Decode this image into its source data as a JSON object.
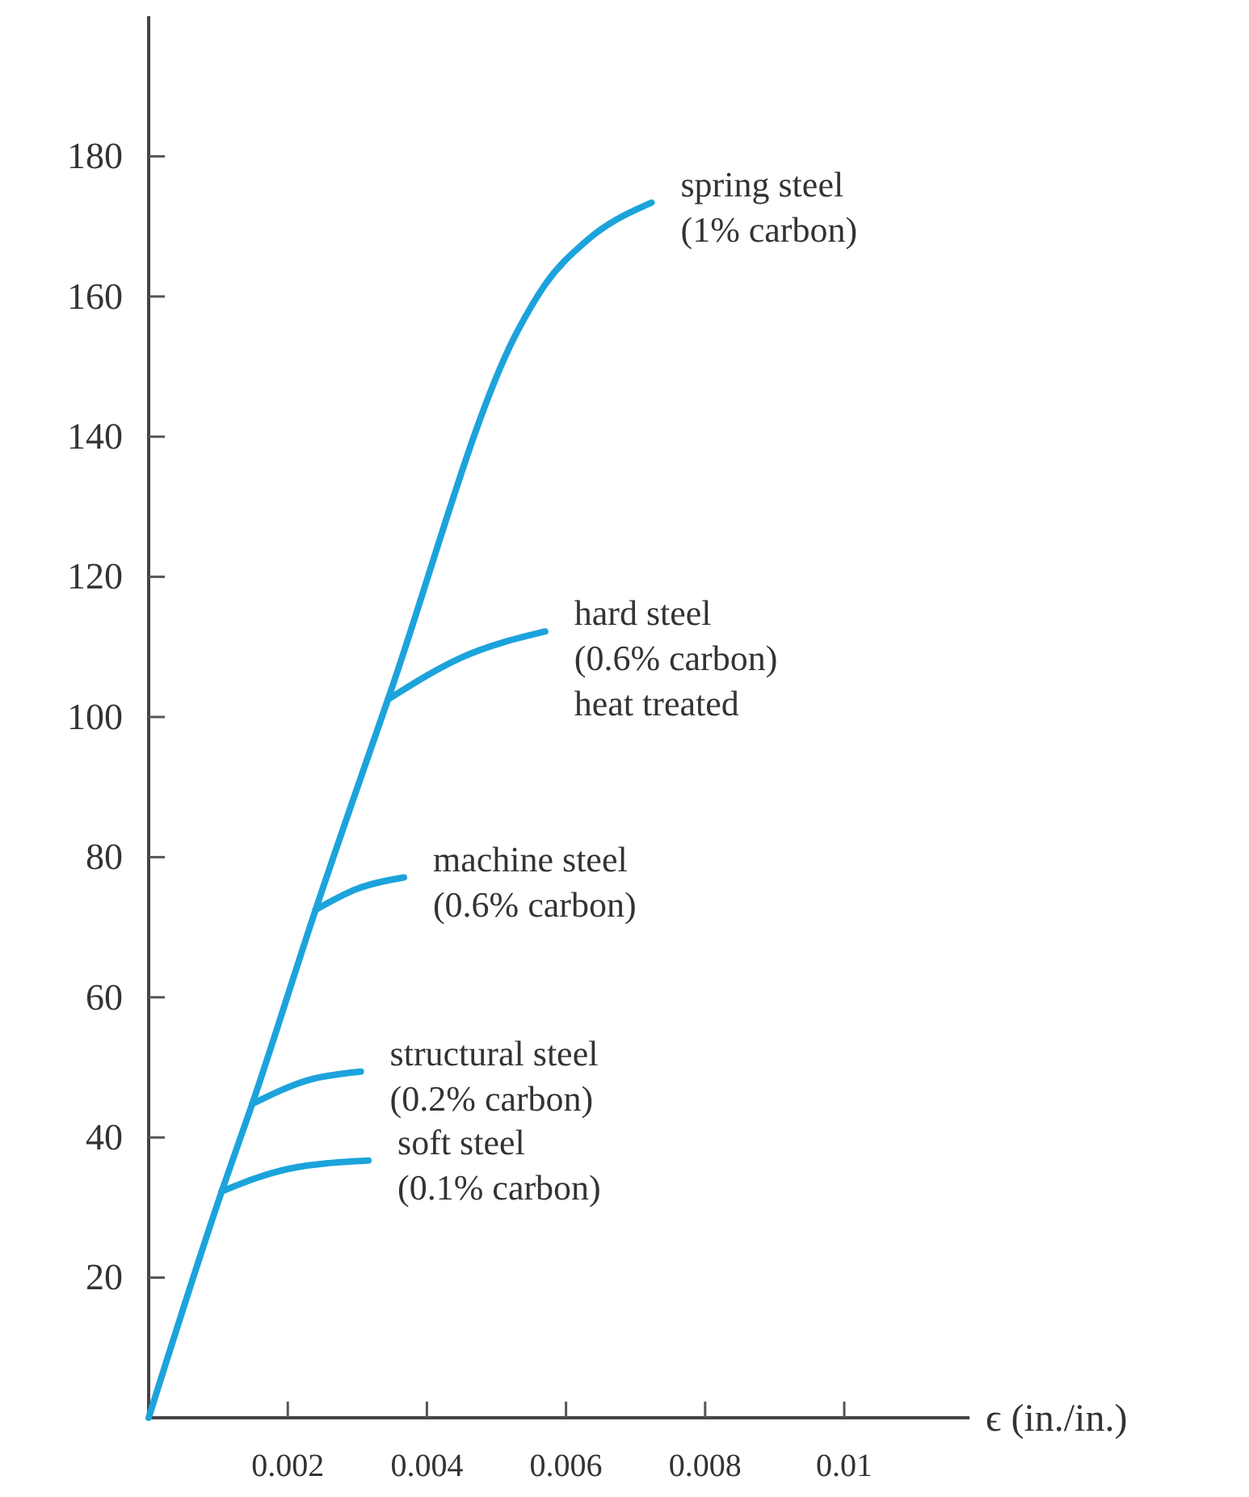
{
  "chart_data": {
    "type": "line",
    "xlabel": "ϵ (in./in.)",
    "xlim": [
      0,
      0.0118
    ],
    "xticks": [
      0.002,
      0.004,
      0.006,
      0.008,
      0.01
    ],
    "ylim": [
      0,
      200
    ],
    "yticks": [
      20,
      40,
      60,
      80,
      100,
      120,
      140,
      160,
      180
    ],
    "grid": false,
    "marker": "none",
    "line_style": "solid",
    "series": [
      {
        "color": "#1ca3dc",
        "x": [
          0,
          0.00105,
          0.00149,
          0.0024,
          0.00344,
          0.0053,
          0.0057,
          0.0063,
          0.00723
        ],
        "values": [
          0,
          32.3,
          44.8,
          72.5,
          102.5,
          155,
          161.7,
          168,
          173.4
        ]
      },
      {
        "color": "#1ca3dc",
        "x": [
          0.00344,
          0.0045,
          0.0057
        ],
        "values": [
          102.5,
          108.5,
          112.2
        ]
      },
      {
        "color": "#1ca3dc",
        "x": [
          0.0024,
          0.003,
          0.00367
        ],
        "values": [
          72.5,
          75.5,
          77.1
        ]
      },
      {
        "color": "#1ca3dc",
        "x": [
          0.00149,
          0.0023,
          0.00305
        ],
        "values": [
          44.8,
          48.2,
          49.4
        ]
      },
      {
        "color": "#1ca3dc",
        "x": [
          0.00105,
          0.002,
          0.00316
        ],
        "values": [
          32.3,
          35.5,
          36.7
        ]
      }
    ],
    "annotations": [
      {
        "text": "spring steel\n(1% carbon)",
        "x": 0.00723,
        "y": 173.4
      },
      {
        "text": "hard steel\n(0.6% carbon)\nheat treated",
        "x": 0.0057,
        "y": 112.2
      },
      {
        "text": "machine steel\n(0.6% carbon)",
        "x": 0.00367,
        "y": 77.1
      },
      {
        "text": "structural steel\n(0.2% carbon)",
        "x": 0.00305,
        "y": 49.4
      },
      {
        "text": "soft steel\n(0.1% carbon)",
        "x": 0.00316,
        "y": 36.7
      }
    ]
  }
}
